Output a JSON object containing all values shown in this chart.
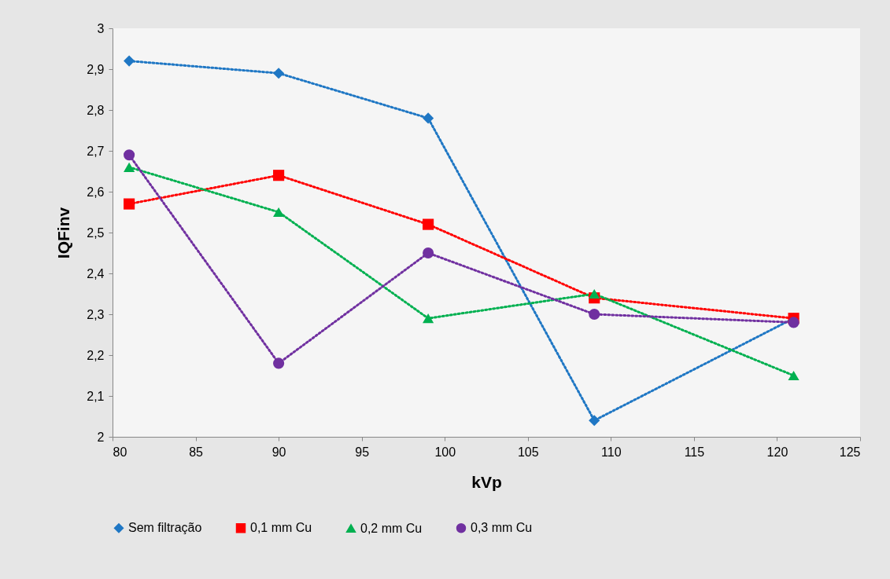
{
  "chart_data": {
    "type": "line",
    "xlabel": "kVp",
    "ylabel": "IQFinv",
    "x": [
      81,
      90,
      99,
      109,
      121
    ],
    "series": [
      {
        "name": "Sem filtração",
        "color": "#1f77c4",
        "marker": "diamond",
        "values": [
          2.92,
          2.89,
          2.78,
          2.04,
          2.29
        ]
      },
      {
        "name": "0,1 mm Cu",
        "color": "#ff0000",
        "marker": "square",
        "values": [
          2.57,
          2.64,
          2.52,
          2.34,
          2.29
        ]
      },
      {
        "name": "0,2 mm Cu",
        "color": "#00b050",
        "marker": "triangle",
        "values": [
          2.66,
          2.55,
          2.29,
          2.35,
          2.15
        ]
      },
      {
        "name": "0,3 mm Cu",
        "color": "#7030a0",
        "marker": "circle",
        "values": [
          2.69,
          2.18,
          2.45,
          2.3,
          2.28
        ]
      }
    ],
    "xlim": [
      80,
      125
    ],
    "xticks": [
      80,
      85,
      90,
      95,
      100,
      105,
      110,
      115,
      120,
      125
    ],
    "ylim": [
      2,
      3
    ],
    "yticks": [
      2,
      {
        "value": 2.1,
        "label": "2,1"
      },
      {
        "value": 2.2,
        "label": "2,2"
      },
      {
        "value": 2.3,
        "label": "2,3"
      },
      {
        "value": 2.4,
        "label": "2,4"
      },
      {
        "value": 2.5,
        "label": "2,5"
      },
      {
        "value": 2.6,
        "label": "2,6"
      },
      {
        "value": 2.7,
        "label": "2,7"
      },
      {
        "value": 2.8,
        "label": "2,8"
      },
      {
        "value": 2.9,
        "label": "2,9"
      },
      3
    ],
    "line_style": "dotted",
    "grid": false,
    "legend": "bottom"
  }
}
